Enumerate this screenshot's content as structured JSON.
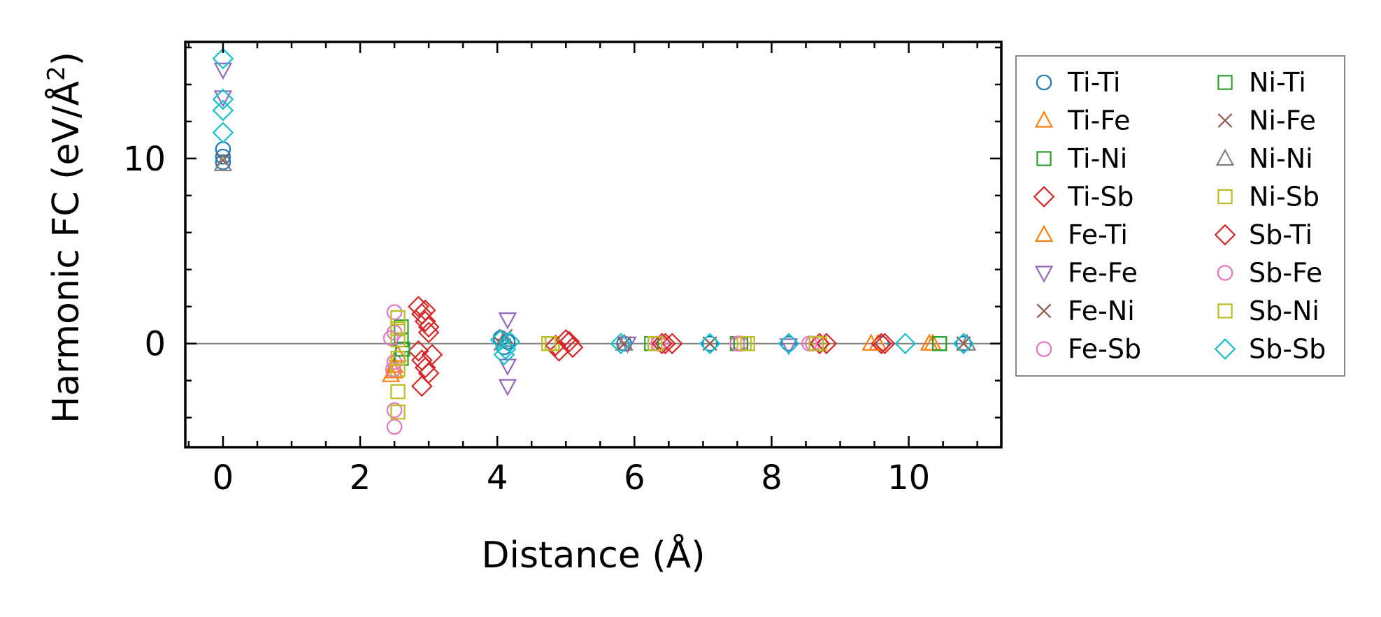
{
  "chart_data": {
    "type": "scatter",
    "title": "",
    "xlabel": "Distance (Å)",
    "ylabel_main": "Harmonic FC (eV/Å",
    "ylabel_sup": "2",
    "ylabel_tail": ")",
    "xlim": [
      -0.55,
      11.35
    ],
    "ylim": [
      -5.6,
      16.3
    ],
    "xticks": [
      0,
      2,
      4,
      6,
      8,
      10
    ],
    "yticks": [
      0,
      10
    ],
    "xminor_step": 0.5,
    "yminor_step": 2,
    "zero_line": true,
    "legend_position": "outside-right",
    "series": [
      {
        "name": "Ti-Ti",
        "marker": "circle",
        "color": "#1f77b4",
        "points": [
          [
            0,
            10.5
          ],
          [
            0,
            10.1
          ],
          [
            0,
            9.8
          ],
          [
            4.05,
            0.3
          ],
          [
            4.1,
            -0.2
          ],
          [
            4.15,
            0.1
          ],
          [
            5.85,
            0
          ],
          [
            7.1,
            0
          ],
          [
            8.25,
            0
          ],
          [
            9.6,
            0
          ],
          [
            10.8,
            0
          ]
        ]
      },
      {
        "name": "Ti-Fe",
        "marker": "triangle-up",
        "color": "#ff7f0e",
        "points": [
          [
            2.45,
            -1.7
          ],
          [
            2.5,
            -1.2
          ],
          [
            2.55,
            -0.6
          ],
          [
            9.55,
            0
          ],
          [
            10.35,
            0
          ]
        ]
      },
      {
        "name": "Ti-Ni",
        "marker": "square",
        "color": "#2ca02c",
        "points": [
          [
            2.6,
            -0.8
          ],
          [
            2.6,
            0.2
          ],
          [
            2.6,
            0.9
          ],
          [
            4.8,
            0
          ],
          [
            6.3,
            0
          ],
          [
            7.5,
            0
          ],
          [
            8.65,
            0
          ],
          [
            10.45,
            0
          ]
        ]
      },
      {
        "name": "Ti-Sb",
        "marker": "diamond",
        "color": "#d62728",
        "points": [
          [
            2.85,
            2.0
          ],
          [
            2.9,
            1.6
          ],
          [
            2.95,
            1.2
          ],
          [
            3.0,
            0.6
          ],
          [
            2.85,
            -0.4
          ],
          [
            2.9,
            -0.9
          ],
          [
            2.95,
            -1.3
          ],
          [
            2.9,
            -2.3
          ],
          [
            4.85,
            -0.1
          ],
          [
            5.05,
            0.1
          ],
          [
            6.45,
            0
          ],
          [
            9.6,
            0
          ]
        ]
      },
      {
        "name": "Fe-Ti",
        "marker": "triangle-up",
        "color": "#ff7f0e",
        "points": [
          [
            2.5,
            -1.5
          ],
          [
            9.45,
            0
          ],
          [
            10.3,
            0
          ]
        ]
      },
      {
        "name": "Fe-Fe",
        "marker": "triangle-down",
        "color": "#9467bd",
        "points": [
          [
            0,
            14.8
          ],
          [
            0,
            13.3
          ],
          [
            4.15,
            1.3
          ],
          [
            4.15,
            -1.2
          ],
          [
            4.15,
            -2.3
          ],
          [
            5.9,
            0
          ],
          [
            8.25,
            -0.1
          ]
        ]
      },
      {
        "name": "Fe-Ni",
        "marker": "x",
        "color": "#8c564b",
        "points": [
          [
            0,
            9.9
          ],
          [
            4.05,
            0
          ],
          [
            4.12,
            0.4
          ],
          [
            5.85,
            0
          ],
          [
            10.8,
            0
          ]
        ]
      },
      {
        "name": "Fe-Sb",
        "marker": "circle",
        "color": "#e377c2",
        "points": [
          [
            2.5,
            1.7
          ],
          [
            2.5,
            0.6
          ],
          [
            2.5,
            -1.0
          ],
          [
            2.5,
            -3.6
          ],
          [
            2.5,
            -4.5
          ],
          [
            6.4,
            0
          ],
          [
            7.55,
            0
          ],
          [
            8.6,
            0
          ]
        ]
      },
      {
        "name": "Ni-Ti",
        "marker": "square",
        "color": "#2ca02c",
        "points": [
          [
            2.62,
            -0.3
          ],
          [
            4.8,
            0
          ],
          [
            6.25,
            0
          ],
          [
            7.55,
            0
          ],
          [
            10.45,
            0
          ]
        ]
      },
      {
        "name": "Ni-Fe",
        "marker": "x",
        "color": "#8c564b",
        "points": [
          [
            4.1,
            -0.1
          ],
          [
            7.1,
            0
          ],
          [
            10.8,
            0
          ]
        ]
      },
      {
        "name": "Ni-Ni",
        "marker": "triangle-up",
        "color": "#7f7f7f",
        "points": [
          [
            0,
            9.7
          ],
          [
            4.1,
            0.2
          ],
          [
            5.85,
            0
          ],
          [
            10.85,
            0
          ]
        ]
      },
      {
        "name": "Ni-Sb",
        "marker": "square",
        "color": "#bcbd22",
        "points": [
          [
            2.55,
            1.4
          ],
          [
            2.55,
            0.8
          ],
          [
            2.55,
            0.2
          ],
          [
            2.55,
            -1.4
          ],
          [
            2.55,
            -2.6
          ],
          [
            2.55,
            -3.7
          ],
          [
            4.8,
            0
          ],
          [
            6.35,
            0
          ],
          [
            7.6,
            0
          ],
          [
            8.7,
            0
          ]
        ]
      },
      {
        "name": "Sb-Ti",
        "marker": "diamond",
        "color": "#d62728",
        "points": [
          [
            2.95,
            1.8
          ],
          [
            3.0,
            0.9
          ],
          [
            3.05,
            -0.6
          ],
          [
            3.0,
            -1.6
          ],
          [
            4.9,
            -0.4
          ],
          [
            5.0,
            0.2
          ],
          [
            5.1,
            -0.2
          ],
          [
            6.4,
            0
          ],
          [
            6.55,
            0
          ],
          [
            8.7,
            0
          ],
          [
            8.8,
            0
          ],
          [
            9.65,
            0
          ]
        ]
      },
      {
        "name": "Sb-Fe",
        "marker": "circle",
        "color": "#e377c2",
        "points": [
          [
            2.45,
            0.3
          ],
          [
            2.48,
            -1.4
          ],
          [
            6.35,
            0
          ],
          [
            7.5,
            0
          ],
          [
            8.55,
            0
          ]
        ]
      },
      {
        "name": "Sb-Ni",
        "marker": "square",
        "color": "#bcbd22",
        "points": [
          [
            2.55,
            -0.8
          ],
          [
            4.75,
            0
          ],
          [
            6.3,
            0
          ],
          [
            7.65,
            0
          ],
          [
            8.65,
            0
          ]
        ]
      },
      {
        "name": "Sb-Sb",
        "marker": "diamond",
        "color": "#17becf",
        "points": [
          [
            0,
            15.4
          ],
          [
            0,
            13.2
          ],
          [
            0,
            12.6
          ],
          [
            0,
            11.4
          ],
          [
            4.05,
            0.2
          ],
          [
            4.12,
            -0.3
          ],
          [
            4.18,
            0.1
          ],
          [
            4.1,
            -0.6
          ],
          [
            5.8,
            0
          ],
          [
            7.1,
            0
          ],
          [
            8.25,
            0
          ],
          [
            9.95,
            0
          ],
          [
            10.8,
            0
          ]
        ]
      }
    ]
  }
}
